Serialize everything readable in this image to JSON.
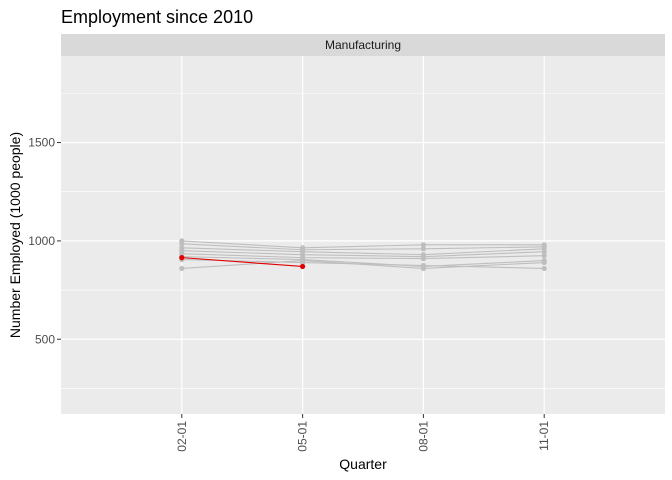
{
  "chart_data": {
    "type": "line",
    "title": "Employment since 2010",
    "facet": "Manufacturing",
    "xlabel": "Quarter",
    "ylabel": "Number Employed (1000 people)",
    "categories": [
      "02-01",
      "05-01",
      "08-01",
      "11-01"
    ],
    "yticks": [
      500,
      1000,
      1500
    ],
    "ylim": [
      120,
      1940
    ],
    "grid": true,
    "legend": "none",
    "series": [
      {
        "values": [
          1000,
          965,
          980,
          980
        ],
        "color": "#bebebe"
      },
      {
        "values": [
          985,
          955,
          960,
          970
        ],
        "color": "#bebebe"
      },
      {
        "values": [
          965,
          945,
          930,
          960
        ],
        "color": "#bebebe"
      },
      {
        "values": [
          950,
          930,
          920,
          945
        ],
        "color": "#bebebe"
      },
      {
        "values": [
          935,
          915,
          910,
          925
        ],
        "color": "#bebebe"
      },
      {
        "values": [
          920,
          905,
          870,
          900
        ],
        "color": "#bebebe"
      },
      {
        "values": [
          860,
          900,
          860,
          890
        ],
        "color": "#bebebe"
      },
      {
        "values": [
          905,
          890,
          875,
          860
        ],
        "color": "#bebebe"
      },
      {
        "values": [
          915,
          870,
          null,
          null
        ],
        "color": "#e00000"
      }
    ],
    "colors": {
      "panel": "#ebebeb",
      "strip": "#d9d9d9",
      "grid": "#ffffff",
      "highlight": "#e00000",
      "other": "#bebebe"
    }
  }
}
